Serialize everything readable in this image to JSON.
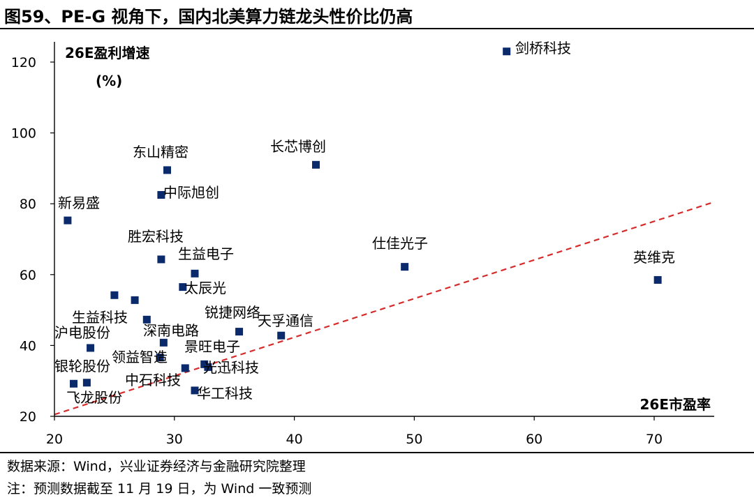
{
  "figure": {
    "title": "图59、PE-G 视角下，国内北美算力链龙头性价比仍高"
  },
  "chart_data": {
    "type": "scatter",
    "title": "图59、PE-G 视角下，国内北美算力链龙头性价比仍高",
    "ylabel_line1": "26E盈利增速",
    "ylabel_line2": "(%)",
    "xlabel": "26E市盈率",
    "xlim": [
      20,
      75
    ],
    "ylim": [
      20,
      125
    ],
    "xticks": [
      20,
      30,
      40,
      50,
      60,
      70
    ],
    "yticks": [
      20,
      40,
      60,
      80,
      100,
      120
    ],
    "marker_color": "#0b2a6b",
    "reference_line": {
      "style": "dashed",
      "color": "#d62b2b",
      "from": [
        20,
        20.5
      ],
      "to": [
        75,
        80.5
      ]
    },
    "points": [
      {
        "name": "剑桥科技",
        "x": 57.7,
        "y": 123
      },
      {
        "name": "长芯博创",
        "x": 41.8,
        "y": 91
      },
      {
        "name": "东山精密",
        "x": 29.4,
        "y": 89.5
      },
      {
        "name": "中际旭创",
        "x": 28.9,
        "y": 82.5
      },
      {
        "name": "新易盛",
        "x": 21.1,
        "y": 75.3
      },
      {
        "name": "胜宏科技",
        "x": 28.9,
        "y": 64.3
      },
      {
        "name": "生益电子",
        "x": 31.7,
        "y": 60.3
      },
      {
        "name": "仕佳光子",
        "x": 49.2,
        "y": 62.2
      },
      {
        "name": "英维克",
        "x": 70.3,
        "y": 58.5
      },
      {
        "name": "太辰光",
        "x": 30.7,
        "y": 56.5
      },
      {
        "name": "",
        "x": 25.0,
        "y": 54.2
      },
      {
        "name": "",
        "x": 26.7,
        "y": 52.8
      },
      {
        "name": "生益科技",
        "x": 27.7,
        "y": 47.3
      },
      {
        "name": "锐捷网络",
        "x": 35.4,
        "y": 43.9
      },
      {
        "name": "天孚通信",
        "x": 38.9,
        "y": 42.8
      },
      {
        "name": "深南电路",
        "x": 29.1,
        "y": 40.8
      },
      {
        "name": "沪电股份",
        "x": 23.0,
        "y": 39.3
      },
      {
        "name": "领益智造",
        "x": 28.8,
        "y": 36.6
      },
      {
        "name": "景旺电子",
        "x": 30.9,
        "y": 33.6
      },
      {
        "name": "光迅科技",
        "x": 32.5,
        "y": 34.7
      },
      {
        "name": "中石科技",
        "x": 32.8,
        "y": 33.9
      },
      {
        "name": "银轮股份",
        "x": 21.6,
        "y": 29.2
      },
      {
        "name": "飞龙股份",
        "x": 22.7,
        "y": 29.5
      },
      {
        "name": "华工科技",
        "x": 31.7,
        "y": 27.3
      }
    ]
  },
  "footer": {
    "source": "数据来源：Wind，兴业证券经济与金融研究院整理",
    "note": "注：预测数据截至 11 月 19 日，为 Wind 一致预测"
  }
}
